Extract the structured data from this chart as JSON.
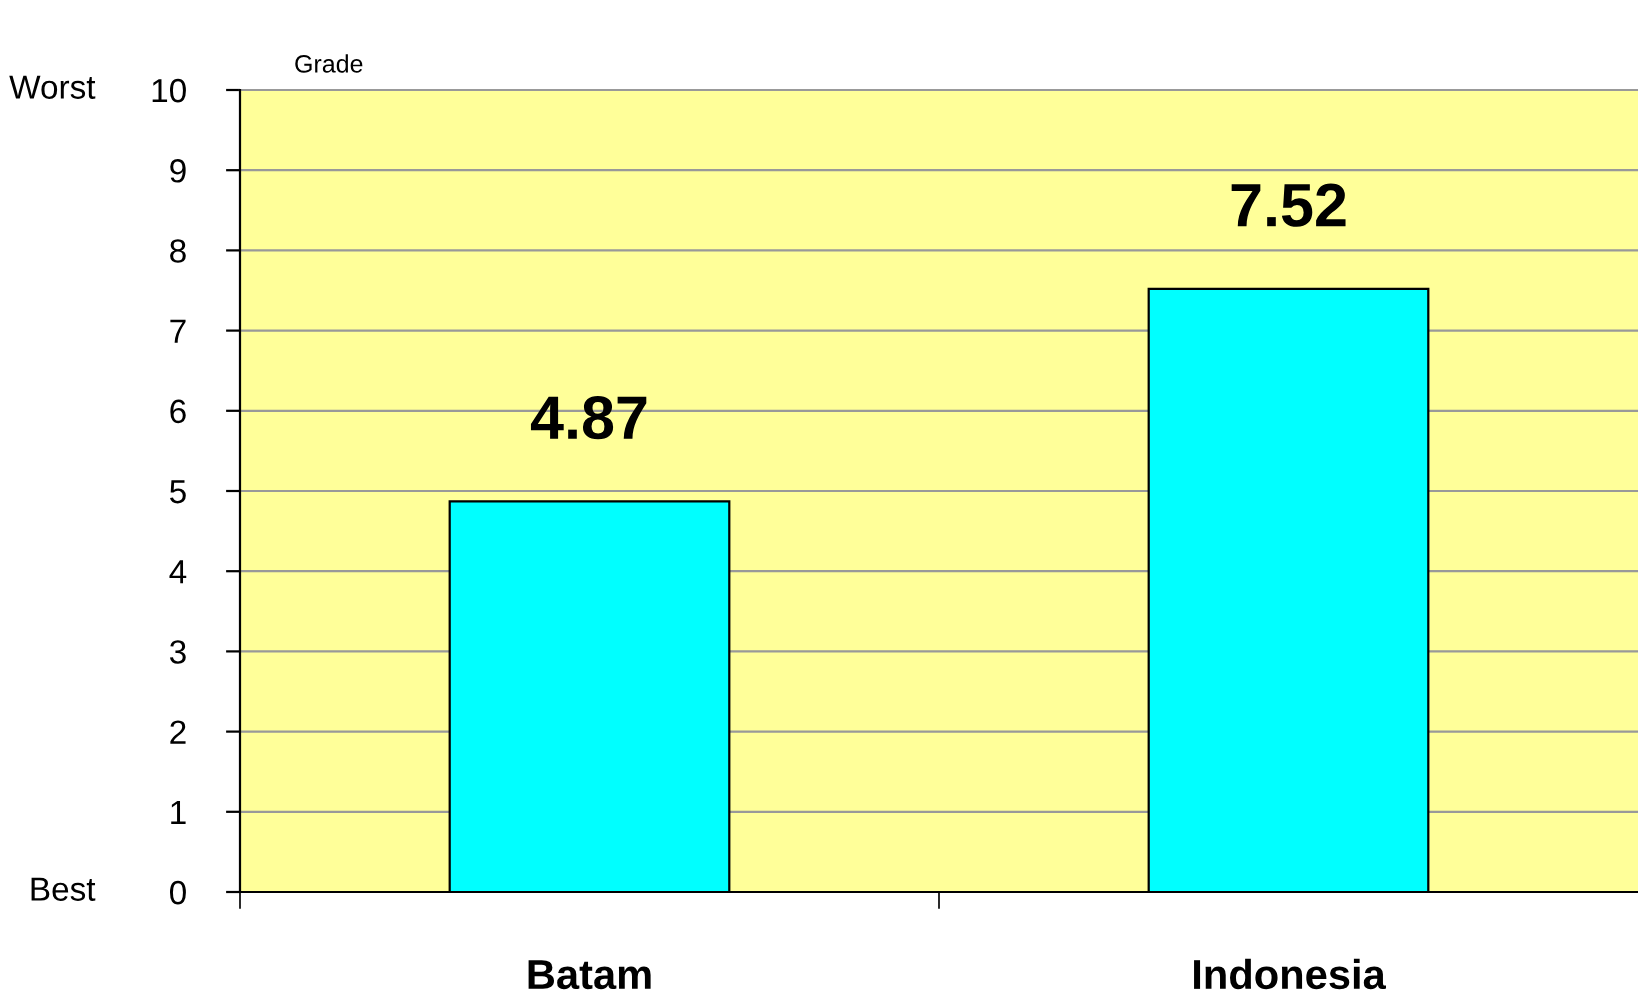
{
  "chart_data": {
    "type": "bar",
    "ylabel": "Grade",
    "categories": [
      "Batam",
      "Indonesia"
    ],
    "values": [
      4.87,
      7.52
    ],
    "color": "#00ffff",
    "ylim": [
      0,
      10
    ],
    "yticks": [
      0,
      1,
      2,
      3,
      4,
      5,
      6,
      7,
      8,
      9,
      10
    ],
    "grid": "y",
    "data_labels": true,
    "annotations": [
      "Worst",
      "Best"
    ]
  }
}
